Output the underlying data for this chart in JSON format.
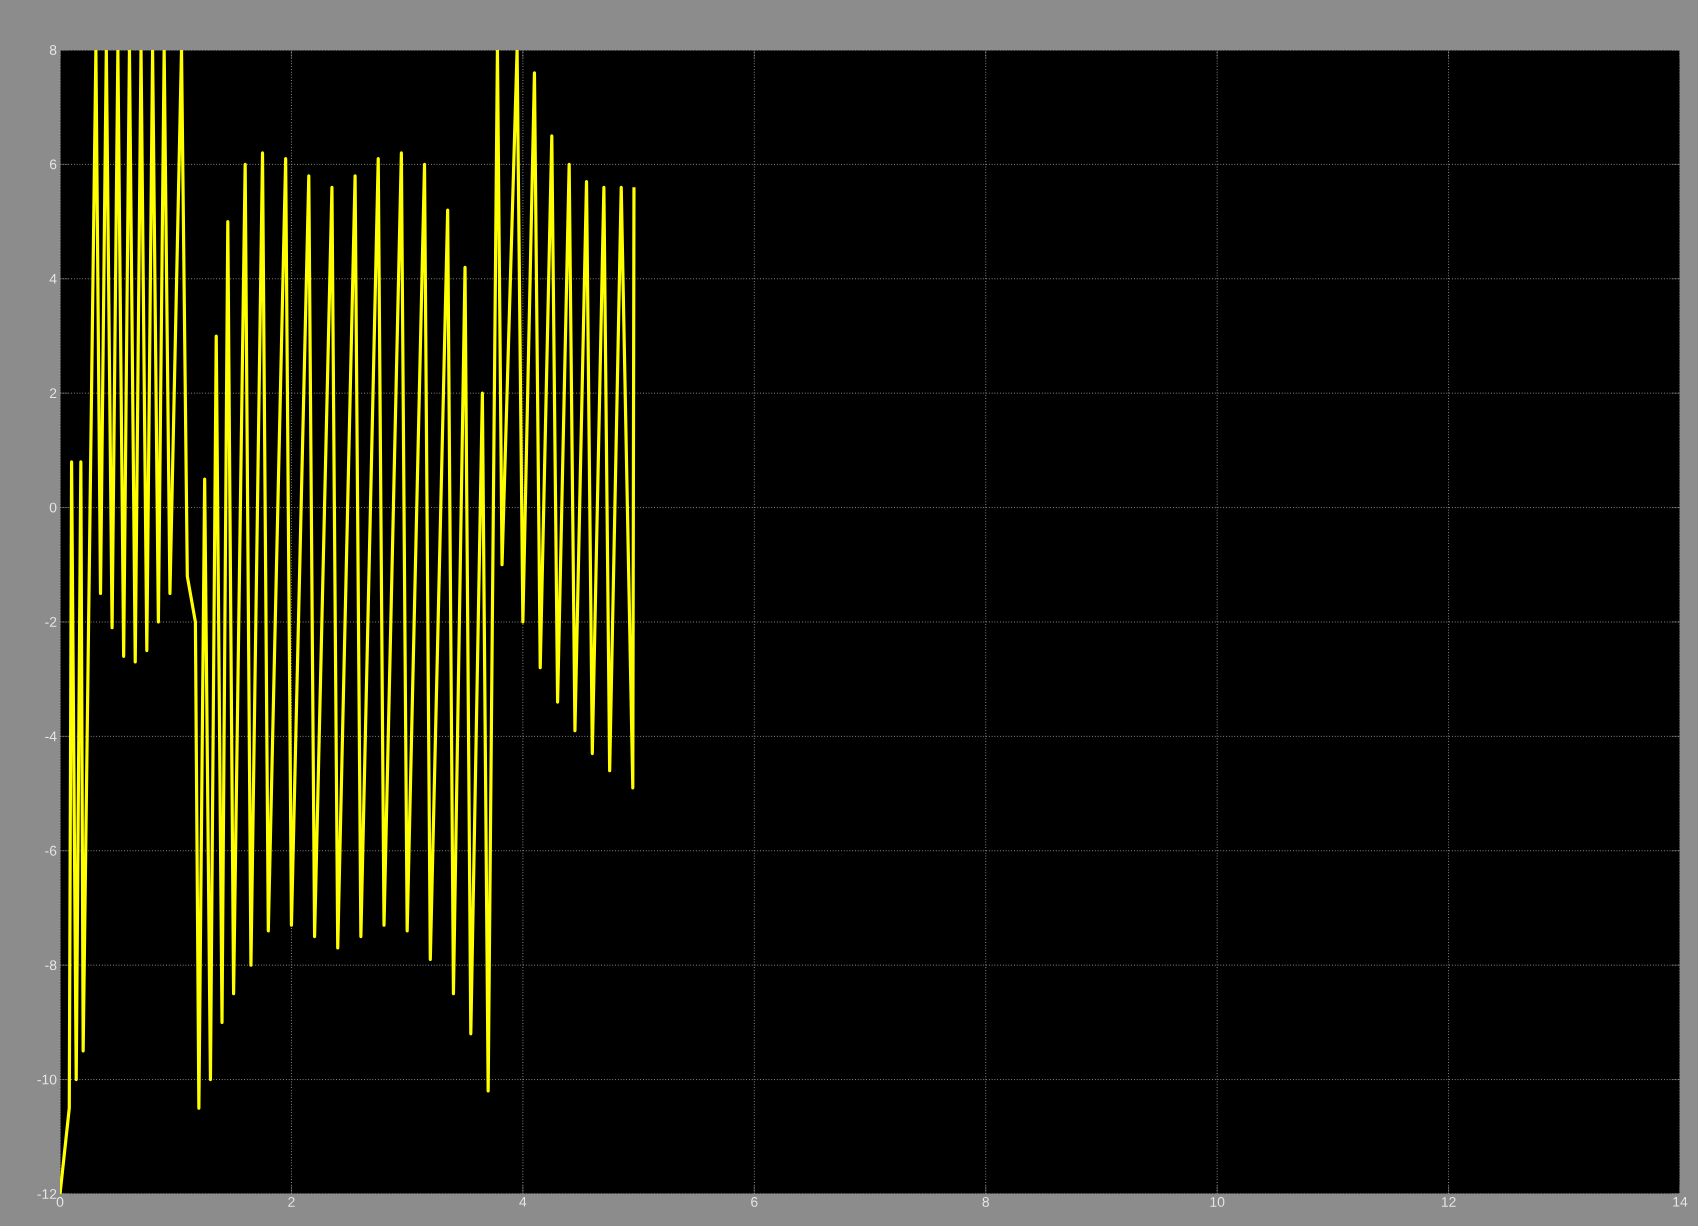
{
  "chart_data": {
    "type": "line",
    "x": [
      0.0,
      0.08,
      0.1,
      0.14,
      0.18,
      0.2,
      0.31,
      0.35,
      0.4,
      0.45,
      0.5,
      0.55,
      0.6,
      0.65,
      0.7,
      0.75,
      0.8,
      0.85,
      0.9,
      0.95,
      1.05,
      1.1,
      1.17,
      1.2,
      1.25,
      1.3,
      1.35,
      1.4,
      1.45,
      1.5,
      1.6,
      1.65,
      1.75,
      1.8,
      1.95,
      2.0,
      2.15,
      2.2,
      2.35,
      2.4,
      2.55,
      2.6,
      2.75,
      2.8,
      2.95,
      3.0,
      3.15,
      3.2,
      3.35,
      3.4,
      3.5,
      3.55,
      3.65,
      3.7,
      3.78,
      3.82,
      3.95,
      4.0,
      4.1,
      4.15,
      4.25,
      4.3,
      4.4,
      4.45,
      4.55,
      4.6,
      4.7,
      4.75,
      4.85,
      4.95,
      4.96
    ],
    "values": [
      -12,
      -10.5,
      0.8,
      -10,
      0.8,
      -9.5,
      8,
      -1.5,
      8,
      -2.1,
      8,
      -2.6,
      8,
      -2.7,
      8,
      -2.5,
      8,
      -2.0,
      8,
      -1.5,
      8,
      -1.2,
      -2,
      -10.5,
      0.5,
      -10,
      3,
      -9,
      5,
      -8.5,
      6,
      -8.0,
      6.2,
      -7.4,
      6.1,
      -7.3,
      5.8,
      -7.5,
      5.6,
      -7.7,
      5.8,
      -7.5,
      6.1,
      -7.3,
      6.2,
      -7.4,
      6.0,
      -7.9,
      5.2,
      -8.5,
      4.2,
      -9.2,
      2,
      -10.2,
      8,
      -1,
      8,
      -2,
      7.6,
      -2.8,
      6.5,
      -3.4,
      6.0,
      -3.9,
      5.7,
      -4.3,
      5.6,
      -4.6,
      5.6,
      -4.9,
      5.6
    ],
    "color": "#ffff00",
    "xlim": [
      0,
      14
    ],
    "ylim": [
      -12,
      8
    ],
    "xticks": [
      0,
      2,
      4,
      6,
      8,
      10,
      12,
      14
    ],
    "yticks": [
      -12,
      -10,
      -8,
      -6,
      -4,
      -2,
      0,
      2,
      4,
      6,
      8
    ],
    "grid": true,
    "marker": "none",
    "line_style": "solid"
  }
}
